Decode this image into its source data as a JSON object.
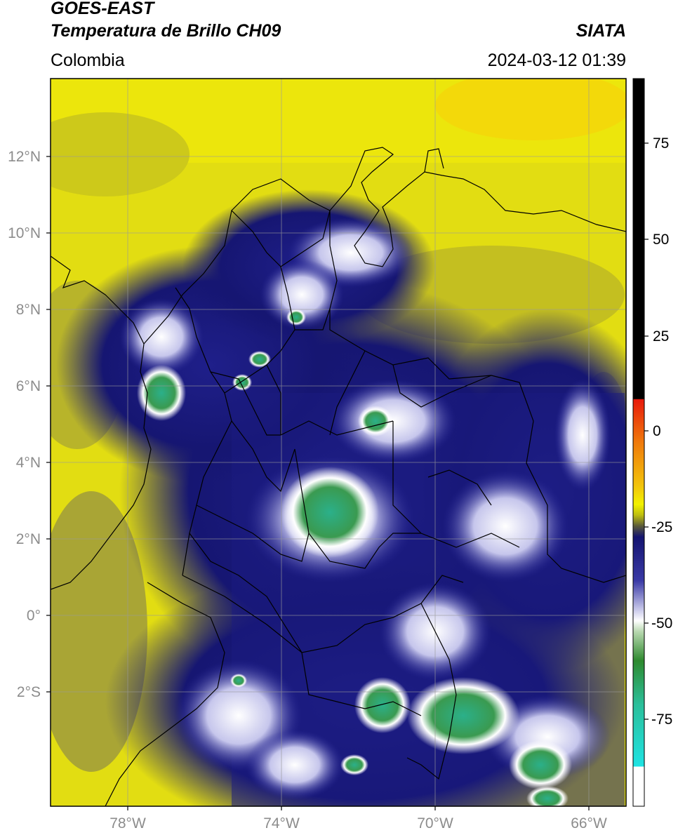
{
  "header": {
    "satellite": "GOES-EAST",
    "product": "Temperatura de Brillo CH09",
    "brand": "SIATA",
    "region": "Colombia",
    "timestamp": "2024-03-12 01:39"
  },
  "axes": {
    "lat_labels": [
      "12°N",
      "10°N",
      "8°N",
      "6°N",
      "4°N",
      "2°N",
      "0°",
      "2°S"
    ],
    "lon_labels": [
      "78°W",
      "74°W",
      "70°W",
      "66°W"
    ]
  },
  "colorbar": {
    "ticks": [
      "75",
      "50",
      "25",
      "0",
      "-25",
      "-50",
      "-75"
    ],
    "colors": {
      "warm_black": "#000000",
      "red": "#e81a0c",
      "orange": "#f7a20c",
      "yellow": "#f2f200",
      "olive": "#bdbd10",
      "dark_navy": "#141470",
      "blue": "#2a2a9c",
      "white": "#ffffff",
      "green": "#2e8a2e",
      "teal": "#2bbf9a",
      "cyan": "#1fe3e3"
    }
  }
}
